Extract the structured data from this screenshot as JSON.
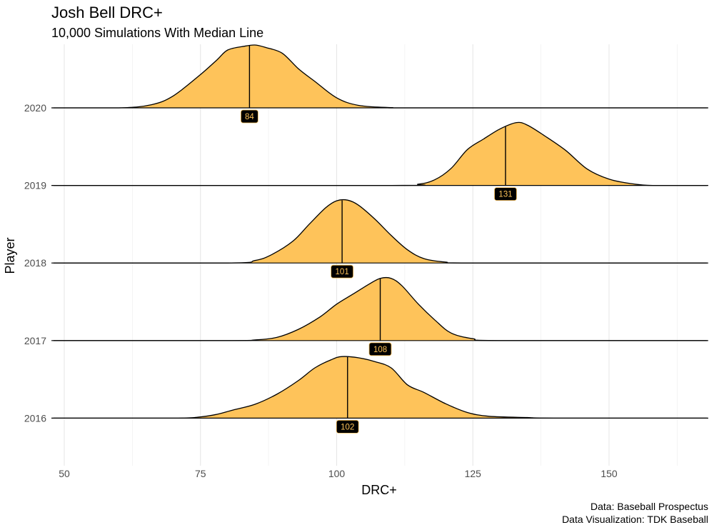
{
  "chart_data": {
    "type": "area",
    "title": "Josh Bell DRC+",
    "subtitle": "10,000 Simulations With Median Line",
    "xlabel": "DRC+",
    "ylabel": "Player",
    "xlim": [
      48,
      168
    ],
    "x_ticks": [
      50,
      75,
      100,
      125,
      150
    ],
    "grid": true,
    "fill_color": "#fec35a",
    "line_color": "#000000",
    "label_fill": "#000000",
    "label_text_color": "#fec35a",
    "caption": [
      "Data: Baseball Prospectus",
      "Data Visualization: TDK Baseball"
    ],
    "series": [
      {
        "name": "2020",
        "median": 84,
        "median_label": "84",
        "density": [
          [
            48,
            0
          ],
          [
            60,
            0
          ],
          [
            66,
            0.05
          ],
          [
            70,
            0.19
          ],
          [
            75,
            0.53
          ],
          [
            78,
            0.76
          ],
          [
            80,
            0.92
          ],
          [
            83,
            0.98
          ],
          [
            85,
            1.0
          ],
          [
            87,
            0.96
          ],
          [
            90,
            0.87
          ],
          [
            93,
            0.62
          ],
          [
            96,
            0.42
          ],
          [
            100,
            0.16
          ],
          [
            104,
            0.04
          ],
          [
            110,
            0.005
          ],
          [
            115,
            0
          ],
          [
            168,
            0
          ]
        ]
      },
      {
        "name": "2019",
        "median": 131,
        "median_label": "131",
        "density": [
          [
            48,
            0
          ],
          [
            110,
            0
          ],
          [
            115,
            0.02
          ],
          [
            118,
            0.09
          ],
          [
            121,
            0.27
          ],
          [
            124,
            0.57
          ],
          [
            127,
            0.74
          ],
          [
            130,
            0.9
          ],
          [
            133,
            1.0
          ],
          [
            135,
            0.96
          ],
          [
            138,
            0.8
          ],
          [
            142,
            0.56
          ],
          [
            146,
            0.26
          ],
          [
            150,
            0.1
          ],
          [
            154,
            0.03
          ],
          [
            158,
            0
          ],
          [
            168,
            0
          ]
        ]
      },
      {
        "name": "2018",
        "median": 101,
        "median_label": "101",
        "density": [
          [
            48,
            0
          ],
          [
            80,
            0
          ],
          [
            85,
            0.04
          ],
          [
            88,
            0.13
          ],
          [
            92,
            0.35
          ],
          [
            95,
            0.62
          ],
          [
            98,
            0.88
          ],
          [
            100,
            0.99
          ],
          [
            102,
            1.0
          ],
          [
            104,
            0.92
          ],
          [
            107,
            0.7
          ],
          [
            110,
            0.44
          ],
          [
            113,
            0.21
          ],
          [
            116,
            0.07
          ],
          [
            120,
            0.015
          ],
          [
            125,
            0
          ],
          [
            168,
            0
          ]
        ]
      },
      {
        "name": "2017",
        "median": 108,
        "median_label": "108",
        "density": [
          [
            48,
            0
          ],
          [
            80,
            0
          ],
          [
            85,
            0.01
          ],
          [
            89,
            0.05
          ],
          [
            93,
            0.18
          ],
          [
            97,
            0.38
          ],
          [
            100,
            0.58
          ],
          [
            103,
            0.74
          ],
          [
            106,
            0.9
          ],
          [
            108,
            0.99
          ],
          [
            110,
            0.99
          ],
          [
            112,
            0.87
          ],
          [
            115,
            0.58
          ],
          [
            118,
            0.33
          ],
          [
            121,
            0.12
          ],
          [
            125,
            0.03
          ],
          [
            130,
            0
          ],
          [
            168,
            0
          ]
        ]
      },
      {
        "name": "2016",
        "median": 102,
        "median_label": "102",
        "density": [
          [
            48,
            0
          ],
          [
            70,
            0
          ],
          [
            75,
            0.02
          ],
          [
            78,
            0.06
          ],
          [
            81,
            0.13
          ],
          [
            85,
            0.22
          ],
          [
            89,
            0.38
          ],
          [
            93,
            0.6
          ],
          [
            96,
            0.8
          ],
          [
            99,
            0.93
          ],
          [
            101,
            0.98
          ],
          [
            104,
            0.96
          ],
          [
            107,
            0.9
          ],
          [
            110,
            0.8
          ],
          [
            113,
            0.53
          ],
          [
            116,
            0.41
          ],
          [
            120,
            0.23
          ],
          [
            124,
            0.09
          ],
          [
            128,
            0.03
          ],
          [
            135,
            0.01
          ],
          [
            140,
            0
          ],
          [
            168,
            0
          ]
        ]
      }
    ]
  }
}
